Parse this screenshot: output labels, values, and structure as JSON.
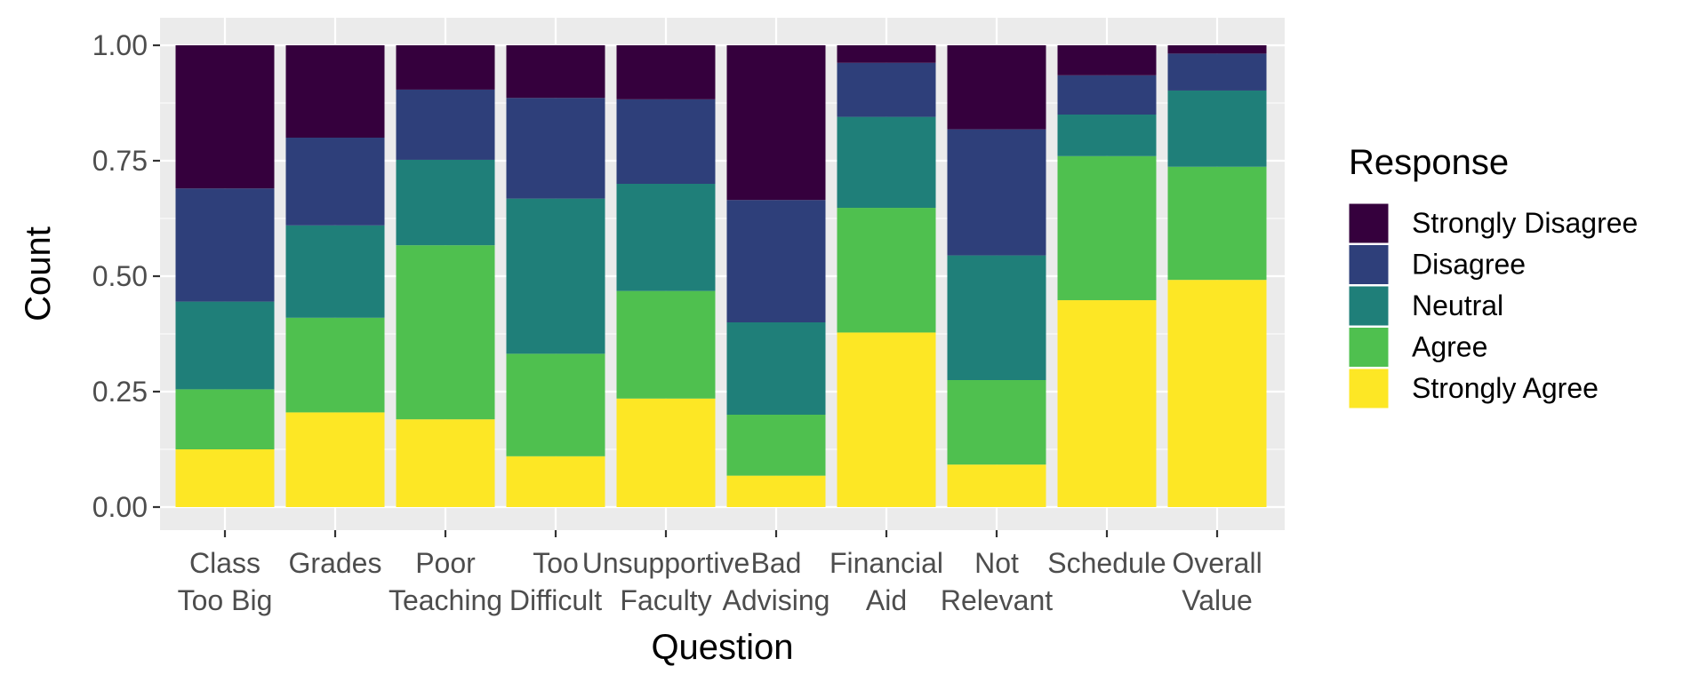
{
  "chart_data": {
    "type": "bar",
    "stacked": true,
    "xlabel": "Question",
    "ylabel": "Count",
    "ylim": [
      0,
      1
    ],
    "yticks": [
      "0.00",
      "0.25",
      "0.50",
      "0.75",
      "1.00"
    ],
    "grid": true,
    "legend_title": "Response",
    "legend_position": "right",
    "categories": [
      [
        "Class",
        "Too Big"
      ],
      [
        "Grades"
      ],
      [
        "Poor",
        "Teaching"
      ],
      [
        "Too",
        "Difficult"
      ],
      [
        "Unsupportive",
        "Faculty"
      ],
      [
        "Bad",
        "Advising"
      ],
      [
        "Financial",
        "Aid"
      ],
      [
        "Not",
        "Relevant"
      ],
      [
        "Schedule"
      ],
      [
        "Overall",
        "Value"
      ]
    ],
    "series": [
      {
        "name": "Strongly Agree",
        "color": "#FDE725",
        "values": [
          0.125,
          0.205,
          0.19,
          0.11,
          0.235,
          0.068,
          0.378,
          0.092,
          0.448,
          0.492
        ]
      },
      {
        "name": "Agree",
        "color": "#4FC04F",
        "values": [
          0.13,
          0.205,
          0.377,
          0.222,
          0.233,
          0.132,
          0.27,
          0.183,
          0.312,
          0.245
        ]
      },
      {
        "name": "Neutral",
        "color": "#1F7F79",
        "values": [
          0.19,
          0.2,
          0.185,
          0.336,
          0.232,
          0.2,
          0.197,
          0.27,
          0.09,
          0.165
        ]
      },
      {
        "name": "Disagree",
        "color": "#2E3F7A",
        "values": [
          0.245,
          0.19,
          0.152,
          0.218,
          0.183,
          0.265,
          0.117,
          0.273,
          0.085,
          0.08
        ]
      },
      {
        "name": "Strongly Disagree",
        "color": "#35003D",
        "values": [
          0.31,
          0.2,
          0.096,
          0.114,
          0.117,
          0.335,
          0.038,
          0.182,
          0.065,
          0.018
        ]
      }
    ],
    "legend_order": [
      "Strongly Disagree",
      "Disagree",
      "Neutral",
      "Agree",
      "Strongly Agree"
    ],
    "colors": {
      "panel_bg": "#EBEBEB",
      "grid": "#FFFFFF",
      "text": "#4D4D4D",
      "title_text": "#000000"
    }
  }
}
